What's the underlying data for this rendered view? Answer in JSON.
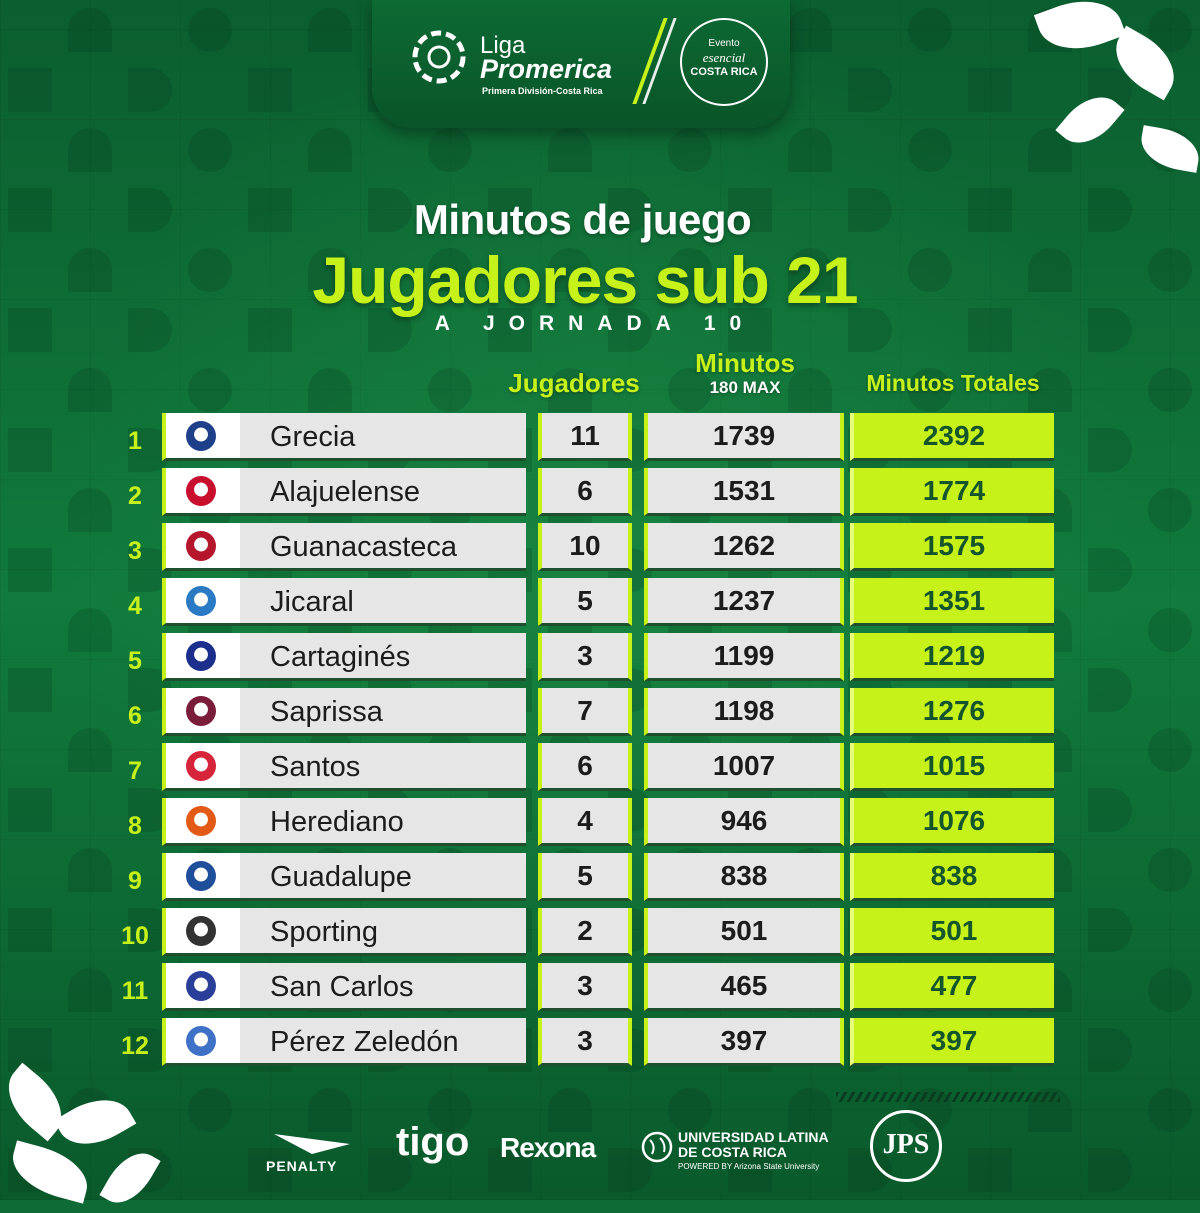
{
  "header": {
    "liga": "Liga",
    "promerica": "Promerica",
    "subtitle": "Primera División-Costa Rica",
    "evento_line1": "Evento",
    "evento_line2": "esencial",
    "evento_line3": "COSTA RICA"
  },
  "title": {
    "line1": "Minutos de juego",
    "line2": "Jugadores sub 21",
    "line3": "A JORNADA 10"
  },
  "columns": {
    "jugadores": "Jugadores",
    "minutos": "Minutos",
    "minutos_sub": "180 MAX",
    "totales": "Minutos Totales"
  },
  "rows": [
    {
      "rank": "1",
      "team": "Grecia",
      "jugadores": "11",
      "minutos": "1739",
      "totales": "2392",
      "color": "#1e3f8a"
    },
    {
      "rank": "2",
      "team": "Alajuelense",
      "jugadores": "6",
      "minutos": "1531",
      "totales": "1774",
      "color": "#c8102e"
    },
    {
      "rank": "3",
      "team": "Guanacasteca",
      "jugadores": "10",
      "minutos": "1262",
      "totales": "1575",
      "color": "#b5162b"
    },
    {
      "rank": "4",
      "team": "Jicaral",
      "jugadores": "5",
      "minutos": "1237",
      "totales": "1351",
      "color": "#2a7bc4"
    },
    {
      "rank": "5",
      "team": "Cartaginés",
      "jugadores": "3",
      "minutos": "1199",
      "totales": "1219",
      "color": "#1c2f8c"
    },
    {
      "rank": "6",
      "team": "Saprissa",
      "jugadores": "7",
      "minutos": "1198",
      "totales": "1276",
      "color": "#7a1d3a"
    },
    {
      "rank": "7",
      "team": "Santos",
      "jugadores": "6",
      "minutos": "1007",
      "totales": "1015",
      "color": "#d6253a"
    },
    {
      "rank": "8",
      "team": "Herediano",
      "jugadores": "4",
      "minutos": "946",
      "totales": "1076",
      "color": "#e25a16"
    },
    {
      "rank": "9",
      "team": "Guadalupe",
      "jugadores": "5",
      "minutos": "838",
      "totales": "838",
      "color": "#1f4e9b"
    },
    {
      "rank": "10",
      "team": "Sporting",
      "jugadores": "2",
      "minutos": "501",
      "totales": "501",
      "color": "#333333"
    },
    {
      "rank": "11",
      "team": "San Carlos",
      "jugadores": "3",
      "minutos": "465",
      "totales": "477",
      "color": "#2a3f9a"
    },
    {
      "rank": "12",
      "team": "Pérez Zeledón",
      "jugadores": "3",
      "minutos": "397",
      "totales": "397",
      "color": "#3f72c6"
    }
  ],
  "sponsors": {
    "penalty": "PENALTY",
    "tigo": "tigo",
    "rexona": "Rexona",
    "ulatina": "UNIVERSIDAD LATINA DE COSTA RICA",
    "ulatina_sub": "POWERED BY Arizona State University",
    "jps": "JPS"
  },
  "colors": {
    "accent": "#c6f21a",
    "background": "#0e6b35"
  }
}
